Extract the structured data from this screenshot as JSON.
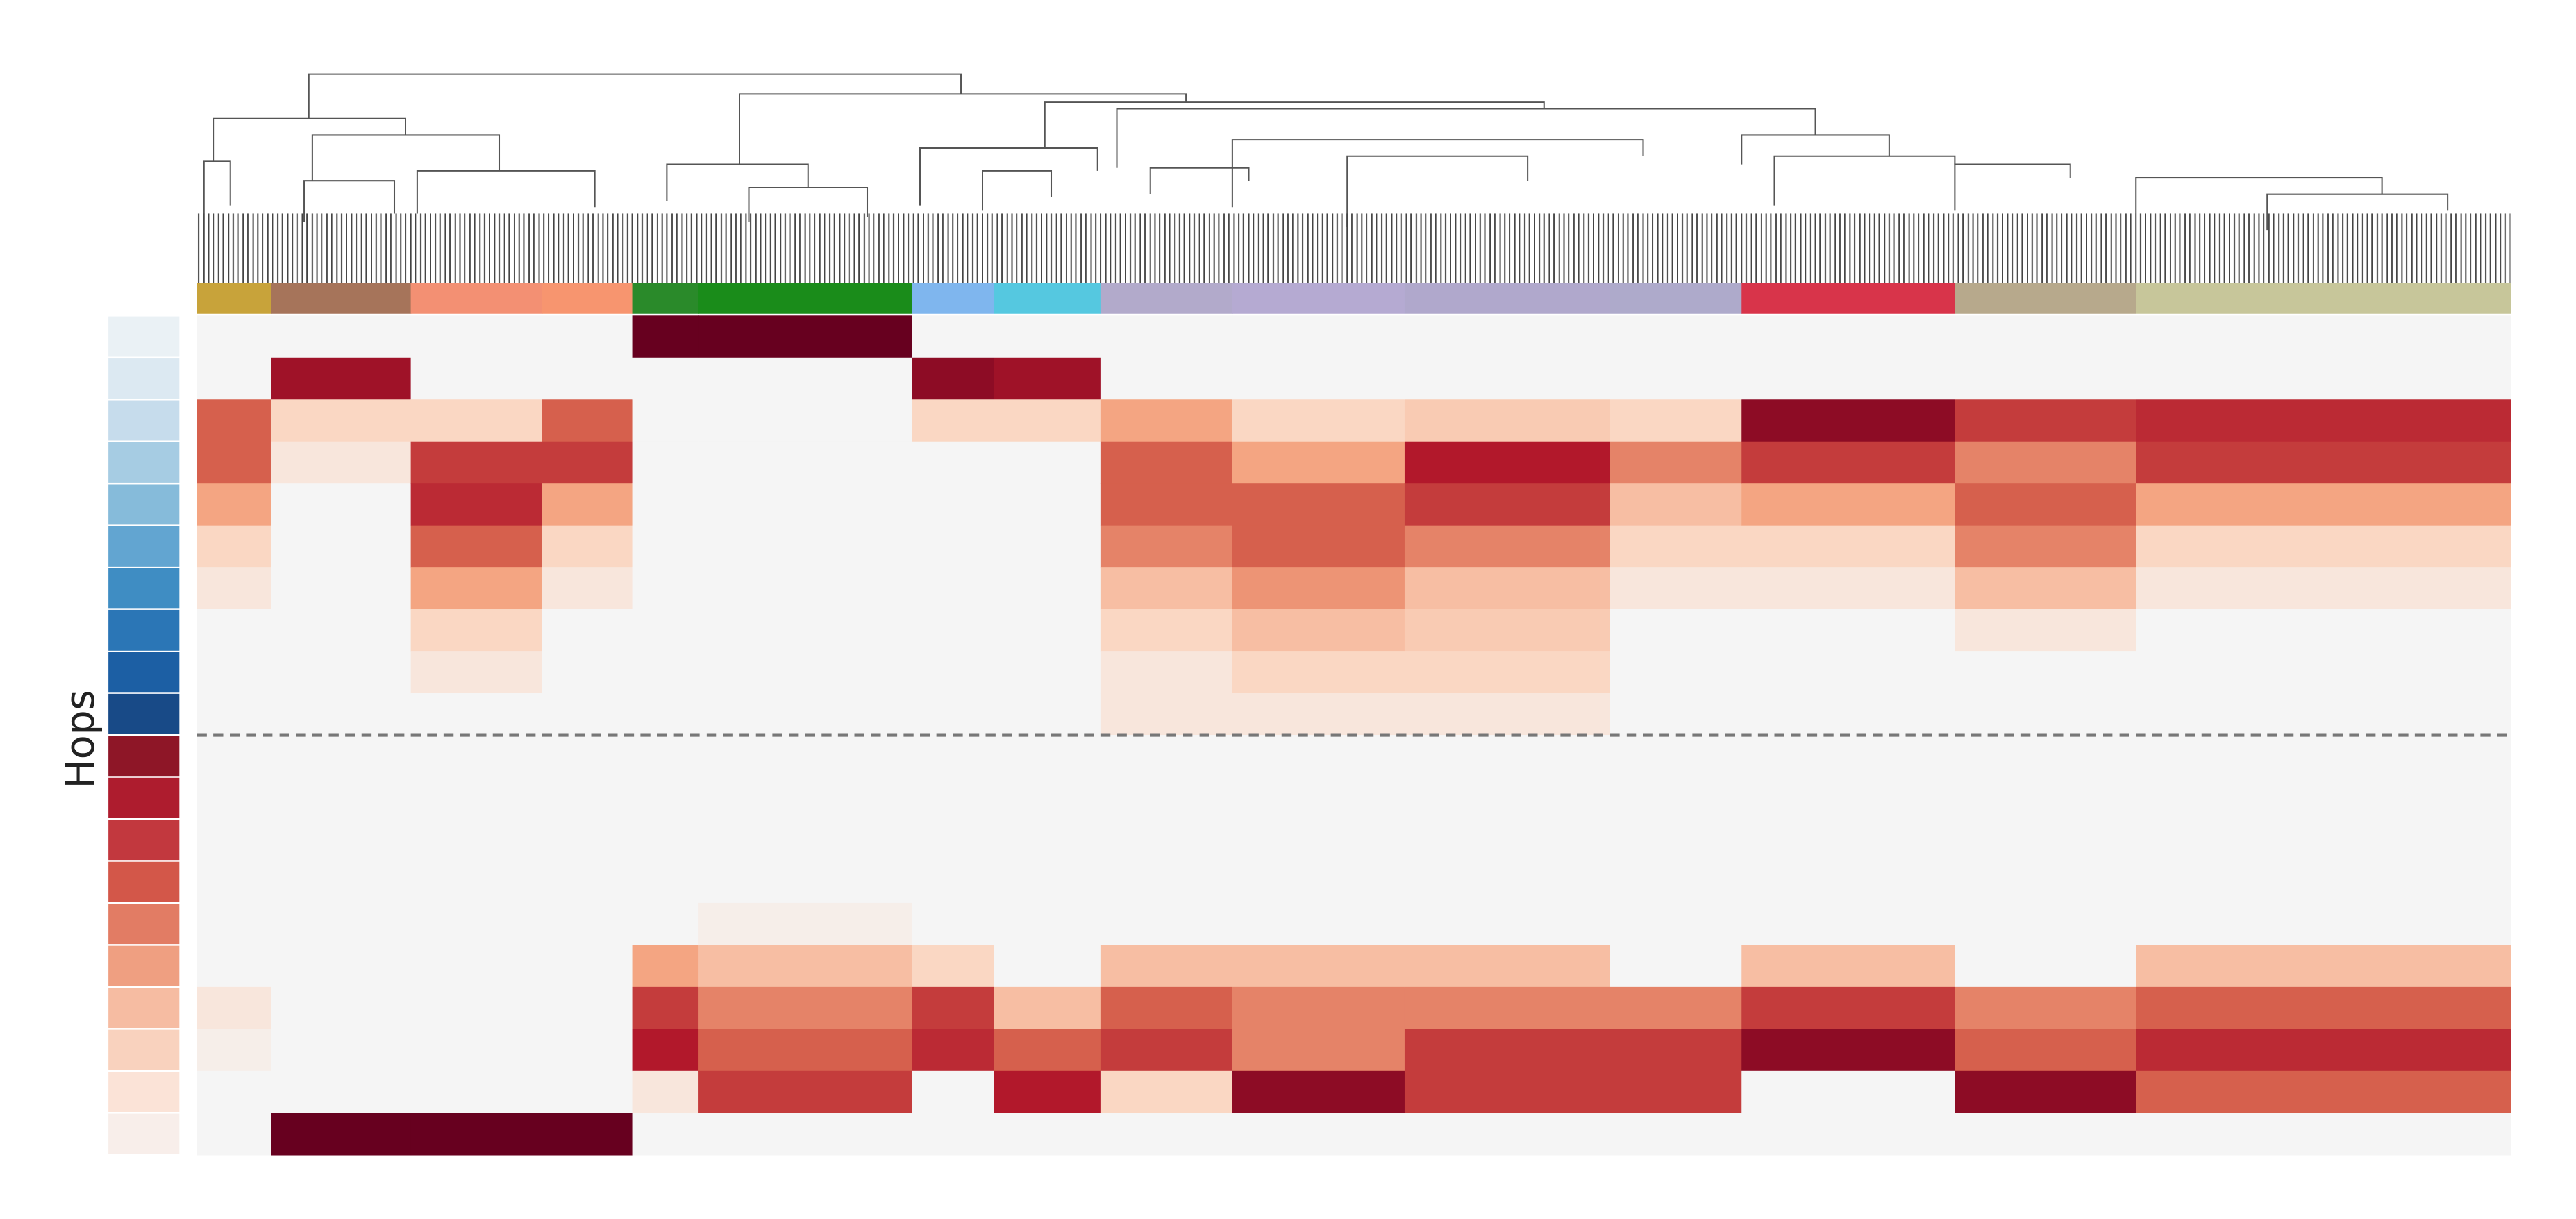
{
  "chart_data": {
    "type": "heatmap",
    "y_label": "Hops",
    "separator_after_row": 9,
    "row_colors": [
      "#eaf1f5",
      "#dce9f2",
      "#c6dcec",
      "#a6cce3",
      "#86bbda",
      "#62a5d1",
      "#3f8dc3",
      "#2b76b6",
      "#1c5fa4",
      "#184a87",
      "#8e1627",
      "#ae1c2e",
      "#c2383e",
      "#d35749",
      "#e27c64",
      "#ef9f81",
      "#f6bca2",
      "#f9d2be",
      "#fbe3d7",
      "#f8eeea"
    ],
    "segments": [
      {
        "n": 45,
        "color": "#c8a33a",
        "values": [
          0,
          0,
          0.6,
          0.6,
          0.4,
          0.2,
          0.1,
          0,
          0,
          0,
          0,
          0,
          0,
          0,
          0,
          0,
          0.1,
          0.05,
          0,
          0
        ]
      },
      {
        "n": 85,
        "color": "#a6745a",
        "values": [
          0,
          0.85,
          0.2,
          0.1,
          0,
          0,
          0,
          0,
          0,
          0,
          0,
          0,
          0,
          0,
          0,
          0,
          0,
          0,
          0,
          1
        ]
      },
      {
        "n": 80,
        "color": "#f39073",
        "values": [
          0,
          0,
          0.2,
          0.7,
          0.75,
          0.6,
          0.4,
          0.2,
          0.1,
          0,
          0,
          0,
          0,
          0,
          0,
          0,
          0,
          0,
          0,
          1
        ]
      },
      {
        "n": 55,
        "color": "#f7956f",
        "values": [
          0,
          0,
          0.6,
          0.7,
          0.4,
          0.2,
          0.1,
          0,
          0,
          0,
          0,
          0,
          0,
          0,
          0,
          0,
          0,
          0,
          0,
          1
        ]
      },
      {
        "n": 40,
        "color": "#2a8a2a",
        "values": [
          1,
          0,
          0,
          0,
          0,
          0,
          0,
          0,
          0,
          0,
          0,
          0,
          0,
          0,
          0,
          0.4,
          0.7,
          0.8,
          0.1,
          0
        ]
      },
      {
        "n": 130,
        "color": "#1a8c1a",
        "values": [
          1,
          0,
          0,
          0,
          0,
          0,
          0,
          0,
          0,
          0,
          0,
          0,
          0,
          0,
          0.05,
          0.3,
          0.5,
          0.6,
          0.7,
          0
        ]
      },
      {
        "n": 50,
        "color": "#7fb6ee",
        "values": [
          0,
          0.9,
          0.2,
          0,
          0,
          0,
          0,
          0,
          0,
          0,
          0,
          0,
          0,
          0,
          0,
          0.2,
          0.7,
          0.75,
          0,
          0
        ]
      },
      {
        "n": 65,
        "color": "#55c8e0",
        "values": [
          0,
          0.85,
          0.2,
          0,
          0,
          0,
          0,
          0,
          0,
          0,
          0,
          0,
          0,
          0,
          0,
          0,
          0.3,
          0.6,
          0.8,
          0
        ]
      },
      {
        "n": 80,
        "color": "#b2aacb",
        "values": [
          0,
          0,
          0.4,
          0.6,
          0.6,
          0.5,
          0.3,
          0.2,
          0.1,
          0.1,
          0,
          0,
          0,
          0,
          0,
          0.3,
          0.6,
          0.7,
          0.2,
          0
        ]
      },
      {
        "n": 105,
        "color": "#b5aad2",
        "values": [
          0,
          0,
          0.2,
          0.4,
          0.6,
          0.6,
          0.45,
          0.3,
          0.2,
          0.1,
          0,
          0,
          0,
          0,
          0,
          0.3,
          0.5,
          0.5,
          0.9,
          0
        ]
      },
      {
        "n": 125,
        "color": "#b0a8cc",
        "values": [
          0,
          0,
          0.25,
          0.8,
          0.7,
          0.5,
          0.3,
          0.25,
          0.2,
          0.1,
          0,
          0,
          0,
          0,
          0,
          0.3,
          0.5,
          0.7,
          0.7,
          0
        ]
      },
      {
        "n": 80,
        "color": "#aeaacb",
        "values": [
          0,
          0,
          0.2,
          0.5,
          0.3,
          0.2,
          0.1,
          0,
          0,
          0,
          0,
          0,
          0,
          0,
          0,
          0,
          0.5,
          0.7,
          0.7,
          0
        ]
      },
      {
        "n": 130,
        "color": "#d8344a",
        "values": [
          0,
          0,
          0.9,
          0.7,
          0.4,
          0.2,
          0.1,
          0,
          0,
          0,
          0,
          0,
          0,
          0,
          0,
          0.3,
          0.7,
          0.9,
          0,
          0
        ]
      },
      {
        "n": 110,
        "color": "#b7a98c",
        "values": [
          0,
          0,
          0.7,
          0.5,
          0.6,
          0.5,
          0.3,
          0.1,
          0,
          0,
          0,
          0,
          0,
          0,
          0,
          0,
          0.5,
          0.6,
          0.9,
          0
        ]
      },
      {
        "n": 228,
        "color": "#c7c69a",
        "values": [
          0,
          0,
          0.75,
          0.7,
          0.4,
          0.2,
          0.1,
          0,
          0,
          0,
          0,
          0,
          0,
          0,
          0,
          0.3,
          0.6,
          0.75,
          0.6,
          0
        ]
      }
    ]
  }
}
